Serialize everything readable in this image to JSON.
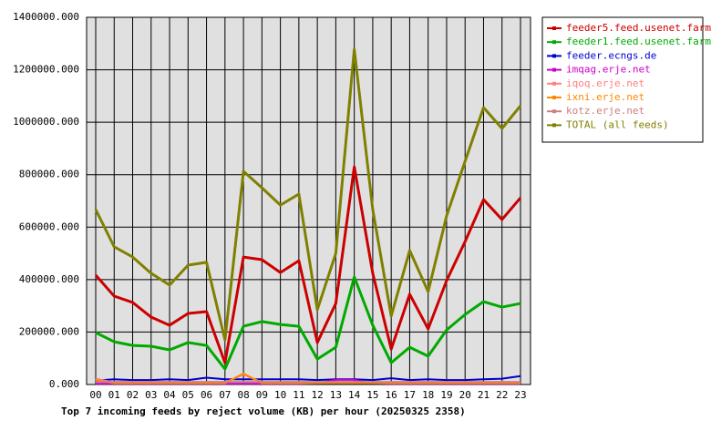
{
  "chart_data": {
    "type": "line",
    "title": "Top 7 incoming feeds by reject volume (KB) per hour (20250325 2358)",
    "categories": [
      "00",
      "01",
      "02",
      "03",
      "04",
      "05",
      "06",
      "07",
      "08",
      "09",
      "10",
      "11",
      "12",
      "13",
      "14",
      "15",
      "16",
      "17",
      "18",
      "19",
      "20",
      "21",
      "22",
      "23"
    ],
    "ylim": [
      0,
      1400000
    ],
    "yticks": [
      {
        "value": 0,
        "label": "0.000"
      },
      {
        "value": 200000,
        "label": "200000.000"
      },
      {
        "value": 400000,
        "label": "400000.000"
      },
      {
        "value": 600000,
        "label": "600000.000"
      },
      {
        "value": 800000,
        "label": "800000.000"
      },
      {
        "value": 1000000,
        "label": "1000000.000"
      },
      {
        "value": 1200000,
        "label": "1200000.000"
      },
      {
        "value": 1400000,
        "label": "1400000.000"
      }
    ],
    "grid": true,
    "series": [
      {
        "name": "feeder5.feed.usenet.farm",
        "color": "#cc0000",
        "values": [
          417000,
          337000,
          313000,
          257000,
          226000,
          271000,
          278000,
          83000,
          486000,
          476000,
          427000,
          472000,
          160000,
          309000,
          830000,
          424000,
          135000,
          344000,
          212000,
          396000,
          545000,
          705000,
          629000,
          712000
        ]
      },
      {
        "name": "feeder1.feed.usenet.farm",
        "color": "#00aa00",
        "values": [
          198000,
          163000,
          149000,
          146000,
          132000,
          160000,
          149000,
          59000,
          222000,
          240000,
          229000,
          222000,
          97000,
          142000,
          410000,
          226000,
          83000,
          142000,
          108000,
          208000,
          267000,
          316000,
          295000,
          309000
        ]
      },
      {
        "name": "feeder.ecngs.de",
        "color": "#0000cc",
        "values": [
          15000,
          20000,
          17000,
          17000,
          20000,
          17000,
          26000,
          20000,
          20000,
          20000,
          20000,
          20000,
          17000,
          20000,
          20000,
          17000,
          24000,
          17000,
          20000,
          17000,
          17000,
          20000,
          22000,
          32000
        ]
      },
      {
        "name": "imqag.erje.net",
        "color": "#cc00cc",
        "values": [
          3000,
          3000,
          3000,
          3000,
          3000,
          3000,
          3000,
          3000,
          3000,
          3000,
          3000,
          3000,
          5000,
          18000,
          18000,
          5000,
          3000,
          3000,
          3000,
          3000,
          3000,
          3000,
          3000,
          3000
        ]
      },
      {
        "name": "iqoq.erje.net",
        "color": "#ff8080",
        "values": [
          22000,
          8000,
          8000,
          8000,
          8000,
          8000,
          8000,
          8000,
          38000,
          8000,
          8000,
          8000,
          8000,
          8000,
          8000,
          8000,
          8000,
          8000,
          8000,
          8000,
          8000,
          8000,
          8000,
          8000
        ]
      },
      {
        "name": "ixni.erje.net",
        "color": "#ff8800",
        "values": [
          18000,
          5000,
          5000,
          5000,
          5000,
          5000,
          5000,
          5000,
          42000,
          5000,
          5000,
          5000,
          5000,
          5000,
          5000,
          5000,
          5000,
          5000,
          5000,
          5000,
          5000,
          5000,
          5000,
          5000
        ]
      },
      {
        "name": "kotz.erje.net",
        "color": "#cc8080",
        "values": [
          10000,
          10000,
          10000,
          10000,
          10000,
          10000,
          10000,
          10000,
          10000,
          10000,
          10000,
          10000,
          10000,
          10000,
          10000,
          10000,
          10000,
          10000,
          10000,
          10000,
          10000,
          10000,
          10000,
          10000
        ]
      },
      {
        "name": "TOTAL (all feeds)",
        "color": "#808000",
        "values": [
          667000,
          525000,
          486000,
          424000,
          379000,
          455000,
          466000,
          170000,
          813000,
          750000,
          684000,
          726000,
          285000,
          500000,
          1278000,
          667000,
          261000,
          511000,
          354000,
          643000,
          851000,
          1056000,
          976000,
          1063000
        ]
      }
    ]
  }
}
